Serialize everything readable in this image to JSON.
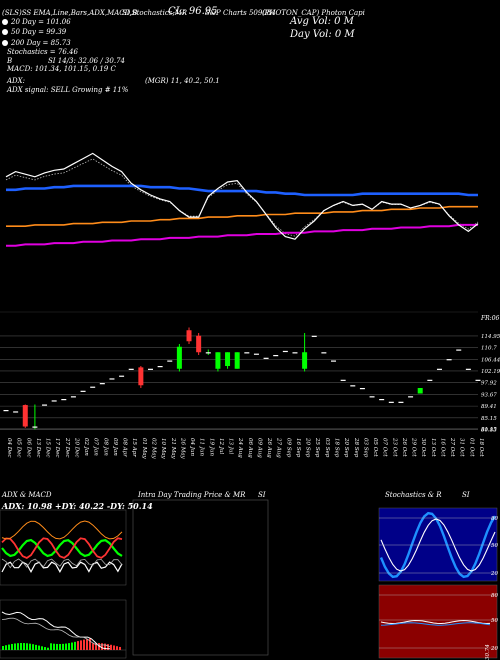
{
  "header": {
    "tickers": "(SLS)SS  EMA,Line,Bars,ADX,MACD,B",
    "extra": "SI,Stochastics,MR",
    "cl": "CL: 96.95",
    "code": "S&P Charts 509084",
    "company": "(PHOTON_CAP) Photon Capi",
    "avg_vol": "Avg Vol: 0  M",
    "day_vol": "Day Vol: 0   M"
  },
  "legend": {
    "ema20": "20  Day = 101.06",
    "ema50": "50  Day = 99.39",
    "ema200": "200  Day = 85.73",
    "stochastics": "Stochastics = 76.46",
    "si": "SI 14/3: 32.06 / 30.74",
    "bb": "B",
    "macd": "MACD: 101.34, 101.15, 0.19 C",
    "adx": "ADX:",
    "mrsi": "(MGR) 11, 40.2, 50.1",
    "signal": "ADX  signal: SELL Growing # 11%"
  },
  "colors": {
    "ema20": "#ffffff",
    "ema50": "#1e60ff",
    "ema200": "#ff8c1a",
    "long": "#e000e0",
    "up": "#00ff00",
    "down": "#ff3333",
    "price_line": "#ffffff"
  },
  "chart_data": {
    "type": "bar",
    "title": "",
    "x": [
      "04 Dec",
      "05 Dec",
      "06 Dec",
      "13 Dec",
      "15 Dec",
      "17 Dec",
      "27 Dec",
      "20 Dec",
      "02 Jan",
      "07 Jan",
      "08 Jan",
      "09 Jan",
      "08 Apr",
      "15 Apr",
      "01 May",
      "02 May",
      "10 May",
      "21 May",
      "26 May",
      "04 Jun",
      "11 Jun",
      "19 Jun",
      "12 Jul",
      "13 Jul",
      "24 Aug",
      "06 Aug",
      "09 Aug",
      "26 Aug",
      "27 Aug",
      "09 Sep",
      "16 Sep",
      "20 Sep",
      "25 Sep",
      "03 Sep",
      "18 Sep",
      "20 Sep",
      "28 Sep",
      "03 Sep",
      "05 Oct",
      "07 Oct",
      "23 Oct",
      "26 Oct",
      "29 Oct",
      "30 Oct",
      "13 Oct",
      "16 Oct",
      "27 Oct",
      "31 Oct",
      "01 Oct",
      "18 Oct"
    ],
    "y_ticks": [
      114.95,
      110.7,
      106.44,
      102.19,
      97.92,
      93.67,
      89.41,
      85.15,
      81.15,
      80.83
    ],
    "y_extra_label": "FR:06",
    "ylim": [
      80,
      120
    ]
  },
  "candles": [
    {
      "o": 88,
      "c": 88,
      "h": 88,
      "l": 88
    },
    {
      "o": 87.5,
      "c": 87.5,
      "h": 87.5,
      "l": 87.5
    },
    {
      "o": 89.8,
      "c": 82,
      "h": 90,
      "l": 81.5
    },
    {
      "o": 82,
      "c": 82,
      "h": 90,
      "l": 81
    },
    {
      "o": 90,
      "c": 90,
      "h": 90,
      "l": 90
    },
    {
      "o": 91.5,
      "c": 91.5,
      "h": 91.5,
      "l": 91.5
    },
    {
      "o": 92,
      "c": 92,
      "h": 92,
      "l": 92
    },
    {
      "o": 93,
      "c": 93,
      "h": 93,
      "l": 93
    },
    {
      "o": 95,
      "c": 95,
      "h": 95,
      "l": 95
    },
    {
      "o": 96.5,
      "c": 96.5,
      "h": 96.5,
      "l": 96.5
    },
    {
      "o": 97.8,
      "c": 97.8,
      "h": 97.8,
      "l": 97.8
    },
    {
      "o": 99.5,
      "c": 99.5,
      "h": 99.5,
      "l": 99.5
    },
    {
      "o": 100.5,
      "c": 100.5,
      "h": 100.5,
      "l": 100.5
    },
    {
      "o": 103,
      "c": 103,
      "h": 103,
      "l": 103
    },
    {
      "o": 103.5,
      "c": 97,
      "h": 104,
      "l": 96
    },
    {
      "o": 103,
      "c": 103,
      "h": 103,
      "l": 103
    },
    {
      "o": 104,
      "c": 104,
      "h": 104,
      "l": 104
    },
    {
      "o": 106,
      "c": 106,
      "h": 106,
      "l": 106
    },
    {
      "o": 103,
      "c": 111,
      "h": 112,
      "l": 102
    },
    {
      "o": 117,
      "c": 113,
      "h": 118,
      "l": 112
    },
    {
      "o": 115,
      "c": 109,
      "h": 116,
      "l": 108
    },
    {
      "o": 109,
      "c": 109,
      "h": 110,
      "l": 108
    },
    {
      "o": 103,
      "c": 109,
      "h": 109,
      "l": 102
    },
    {
      "o": 104,
      "c": 109,
      "h": 109,
      "l": 103
    },
    {
      "o": 103,
      "c": 109,
      "h": 109,
      "l": 103
    },
    {
      "o": 109,
      "c": 109,
      "h": 109,
      "l": 109
    },
    {
      "o": 108.5,
      "c": 108.5,
      "h": 108.5,
      "l": 108.5
    },
    {
      "o": 107,
      "c": 107,
      "h": 107,
      "l": 107
    },
    {
      "o": 108,
      "c": 108,
      "h": 108,
      "l": 108
    },
    {
      "o": 109.5,
      "c": 109.5,
      "h": 109.5,
      "l": 109.5
    },
    {
      "o": 109,
      "c": 109,
      "h": 109,
      "l": 109
    },
    {
      "o": 103,
      "c": 109,
      "h": 116,
      "l": 102
    },
    {
      "o": 115,
      "c": 115,
      "h": 115,
      "l": 115
    },
    {
      "o": 109,
      "c": 109,
      "h": 109,
      "l": 109
    },
    {
      "o": 106,
      "c": 106,
      "h": 106,
      "l": 106
    },
    {
      "o": 99,
      "c": 99,
      "h": 99,
      "l": 99
    },
    {
      "o": 97,
      "c": 97,
      "h": 97,
      "l": 97
    },
    {
      "o": 96,
      "c": 96,
      "h": 96,
      "l": 96
    },
    {
      "o": 93,
      "c": 93,
      "h": 93,
      "l": 93
    },
    {
      "o": 92,
      "c": 92,
      "h": 92,
      "l": 92
    },
    {
      "o": 91,
      "c": 91,
      "h": 91,
      "l": 91
    },
    {
      "o": 91,
      "c": 91,
      "h": 91,
      "l": 91
    },
    {
      "o": 93,
      "c": 93,
      "h": 93,
      "l": 93
    },
    {
      "o": 94,
      "c": 96,
      "h": 96,
      "l": 94
    },
    {
      "o": 99,
      "c": 99,
      "h": 99,
      "l": 99
    },
    {
      "o": 103,
      "c": 103,
      "h": 103,
      "l": 103
    },
    {
      "o": 106.5,
      "c": 106.5,
      "h": 106.5,
      "l": 106.5
    },
    {
      "o": 110,
      "c": 110,
      "h": 110,
      "l": 110
    },
    {
      "o": 103,
      "c": 103,
      "h": 103,
      "l": 103
    },
    {
      "o": 99,
      "c": 99,
      "h": 99,
      "l": 99
    }
  ],
  "lines": {
    "price": [
      36,
      32,
      34,
      36,
      33,
      31,
      30,
      26,
      22,
      18,
      23,
      28,
      32,
      41,
      46,
      50,
      53,
      55,
      62,
      67,
      67,
      51,
      45,
      40,
      39,
      48,
      55,
      65,
      75,
      82,
      84,
      76,
      70,
      62,
      58,
      55,
      58,
      57,
      61,
      55,
      57,
      57,
      60,
      58,
      55,
      57,
      66,
      73,
      78,
      72
    ],
    "ema20": [
      44,
      43,
      42,
      41,
      41,
      41,
      41,
      40,
      40,
      40,
      40,
      40,
      40,
      41,
      42,
      43,
      44,
      45,
      47,
      48,
      50,
      51,
      51,
      50,
      50,
      50,
      51,
      52,
      53,
      54,
      55,
      55,
      55,
      54,
      53,
      52,
      51,
      50,
      50,
      49,
      49,
      49,
      49,
      49,
      48,
      48,
      49,
      50,
      51,
      52
    ],
    "ema50": [
      46,
      46,
      45,
      45,
      45,
      44,
      44,
      43,
      43,
      43,
      43,
      43,
      43,
      43,
      43,
      44,
      44,
      44,
      45,
      45,
      46,
      47,
      47,
      47,
      47,
      47,
      47,
      48,
      48,
      49,
      49,
      50,
      50,
      50,
      50,
      50,
      50,
      49,
      49,
      49,
      49,
      49,
      49,
      49,
      49,
      49,
      49,
      49,
      50,
      50
    ],
    "ema200": [
      74,
      74,
      74,
      73,
      73,
      73,
      73,
      72,
      72,
      72,
      71,
      71,
      71,
      70,
      70,
      70,
      69,
      69,
      68,
      68,
      68,
      67,
      67,
      67,
      66,
      66,
      66,
      65,
      65,
      65,
      64,
      64,
      64,
      64,
      63,
      63,
      63,
      62,
      62,
      62,
      61,
      61,
      61,
      60,
      60,
      60,
      59,
      59,
      59,
      59
    ],
    "long": [
      89,
      89,
      88,
      88,
      88,
      87,
      87,
      87,
      86,
      86,
      86,
      85,
      85,
      85,
      84,
      84,
      84,
      83,
      83,
      83,
      82,
      82,
      82,
      81,
      81,
      81,
      80,
      80,
      80,
      79,
      79,
      79,
      78,
      78,
      78,
      77,
      77,
      77,
      76,
      76,
      76,
      75,
      75,
      75,
      74,
      74,
      74,
      73,
      73,
      73
    ]
  },
  "panels": {
    "adx_title": "ADX  & MACD",
    "intraday_title": "Intra  Day Trading Price  & MR",
    "si_title": "SI",
    "stoch_title": "Stochastics & R",
    "si2_title": "SI",
    "adx_readout": "ADX: 10.98  +DY: 40.22  -DY: 50.14",
    "stoch_ticks": [
      "80",
      "50",
      "20"
    ],
    "si_ticks": [
      "80",
      "50",
      "20"
    ],
    "si_right_label": "30.74"
  }
}
